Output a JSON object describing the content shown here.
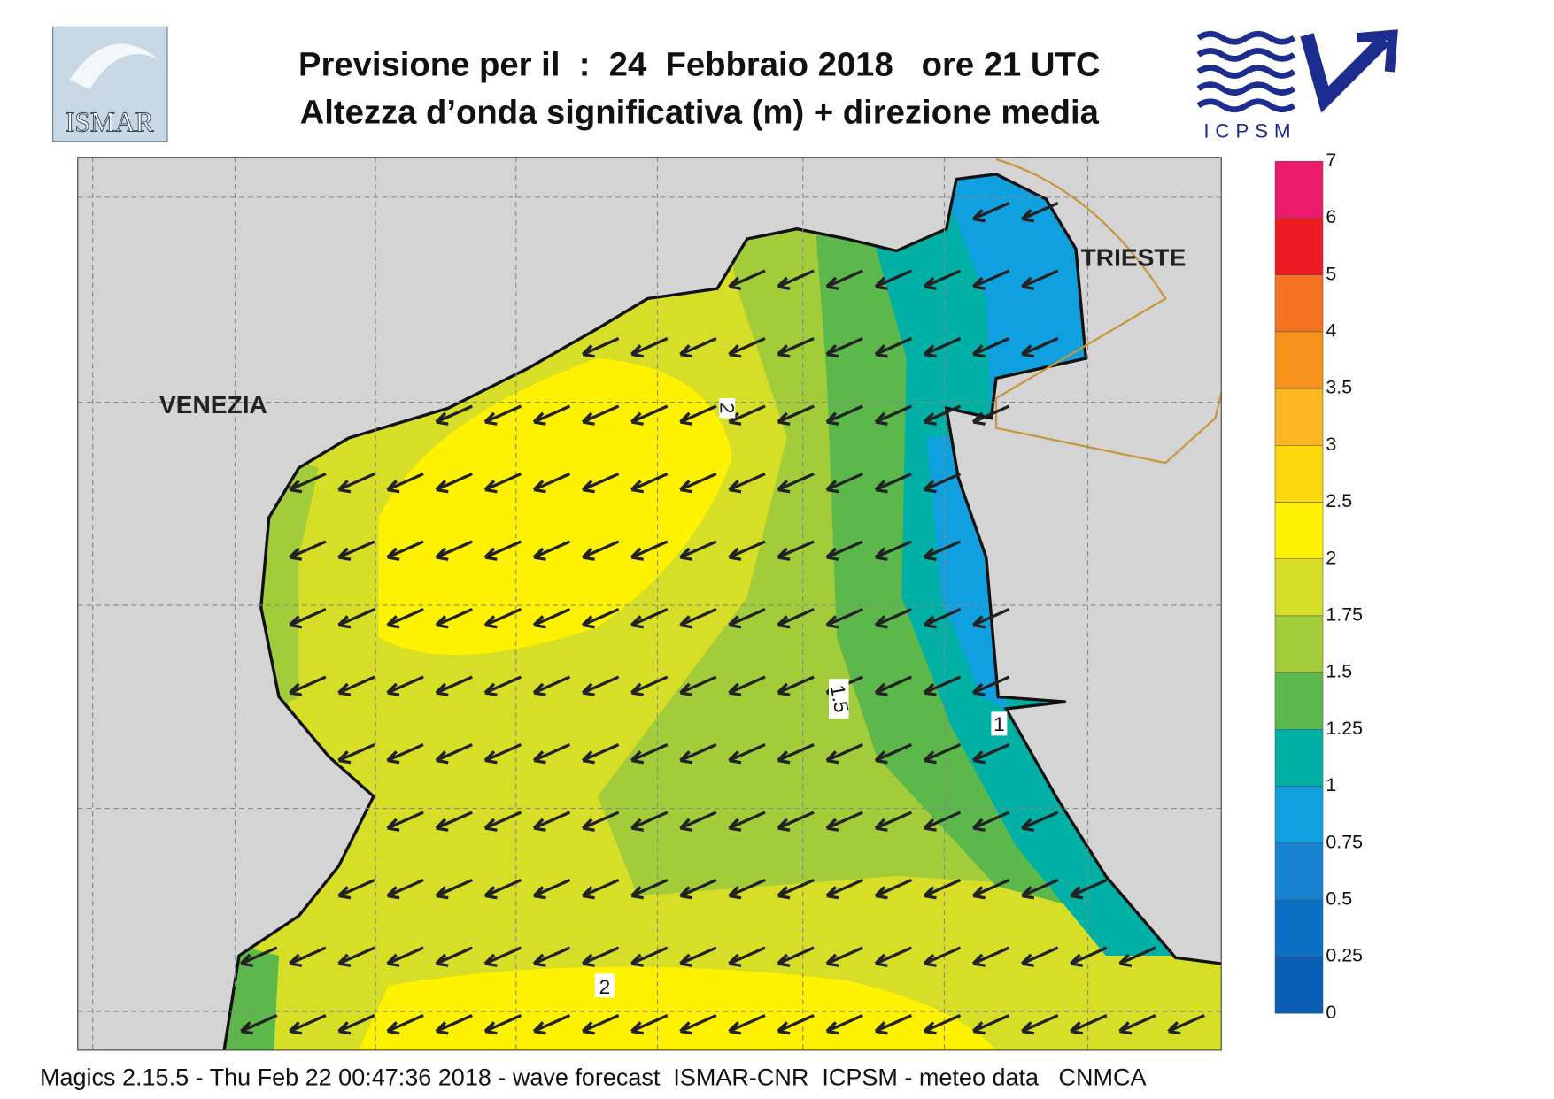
{
  "header": {
    "title": "Previsione per il  :  24  Febbraio 2018   ore 21 UTC",
    "subtitle": "Altezza d’onda significativa (m) + direzione media"
  },
  "logos": {
    "left": "ISMAR",
    "right": "ICPSM"
  },
  "map": {
    "places": [
      "VENEZIA",
      "TRIESTE"
    ],
    "contour_labels": [
      "2",
      "1.5",
      "1",
      "2"
    ]
  },
  "legend": {
    "labels": [
      0,
      0.25,
      0.5,
      0.75,
      1,
      1.25,
      1.5,
      1.75,
      2,
      2.5,
      3,
      3.5,
      4,
      5,
      6,
      7
    ],
    "colors": [
      "#0a5fb4",
      "#0b70c2",
      "#1783d0",
      "#10a0e0",
      "#00b0a4",
      "#5db84c",
      "#a3cc3b",
      "#d6de28",
      "#fff200",
      "#fdd80d",
      "#fbb621",
      "#f7931d",
      "#f37321",
      "#ed1c24",
      "#ec1a6c"
    ]
  },
  "footer": "Magics 2.15.5 - Thu Feb 22 00:47:36 2018 - wave forecast  ISMAR-CNR  ICPSM - meteo data   CNMCA"
}
